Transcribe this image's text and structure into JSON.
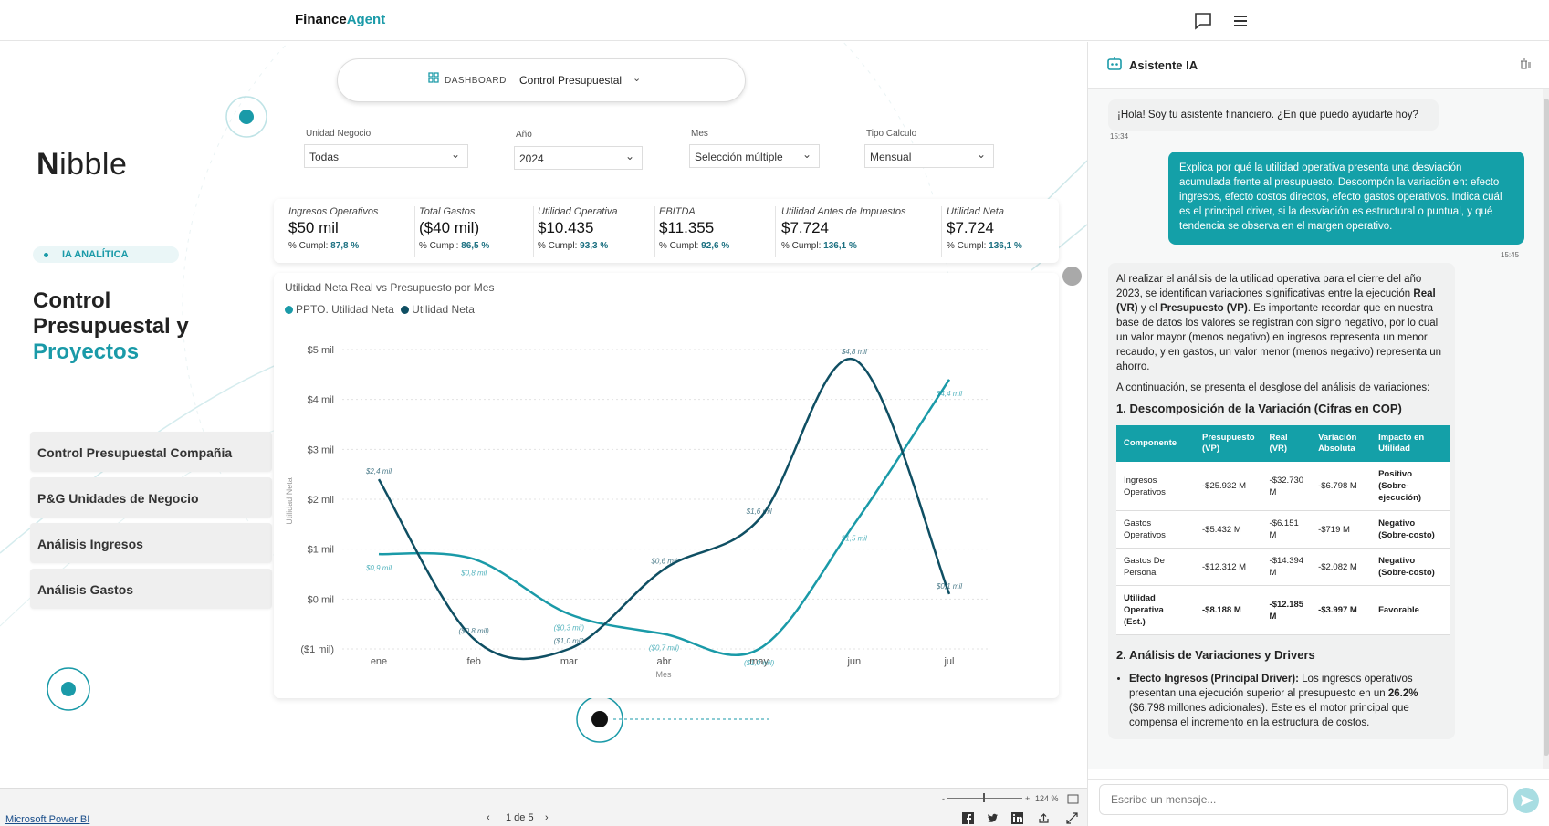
{
  "app": {
    "brand_main": "Finance",
    "brand_accent": "Agent",
    "accent_color": "#1a9aa8",
    "dark_color": "#0f4f63"
  },
  "nav": {
    "dashboard_label": "DASHBOARD",
    "current_page": "Control Presupuestal"
  },
  "sidebar": {
    "logo_text": "ibble",
    "logo_initial": "N",
    "badge": "IA ANALÍTICA",
    "title_line1": "Control",
    "title_line2": "Presupuestal y",
    "title_accent": "Proyectos",
    "items": [
      {
        "label": "Control Presupuestal Compañia"
      },
      {
        "label": "P&G Unidades de Negocio"
      },
      {
        "label": "Análisis Ingresos"
      },
      {
        "label": "Análisis Gastos"
      }
    ]
  },
  "filters": [
    {
      "label": "Unidad Negocio",
      "value": "Todas"
    },
    {
      "label": "Año",
      "value": "2024"
    },
    {
      "label": "Mes",
      "value": "Selección múltiple"
    },
    {
      "label": "Tipo Calculo",
      "value": "Mensual"
    }
  ],
  "kpis": [
    {
      "label": "Ingresos Operativos",
      "value": "$50 mil",
      "pct_label": "% Cumpl:",
      "pct": "87,8 %"
    },
    {
      "label": "Total Gastos",
      "value": "($40 mil)",
      "pct_label": "% Cumpl:",
      "pct": "86,5 %"
    },
    {
      "label": "Utilidad Operativa",
      "value": "$10.435",
      "pct_label": "% Cumpl:",
      "pct": "93,3 %"
    },
    {
      "label": "EBITDA",
      "value": "$11.355",
      "pct_label": "% Cumpl:",
      "pct": "92,6 %"
    },
    {
      "label": "Utilidad Antes de Impuestos",
      "value": "$7.724",
      "pct_label": "% Cumpl:",
      "pct": "136,1 %"
    },
    {
      "label": "Utilidad Neta",
      "value": "$7.724",
      "pct_label": "% Cumpl:",
      "pct": "136,1 %"
    }
  ],
  "chart_data": {
    "type": "line",
    "title": "Utilidad Neta Real vs Presupuesto por Mes",
    "xlabel": "Mes",
    "ylabel": "Utilidad Neta",
    "categories": [
      "ene",
      "feb",
      "mar",
      "abr",
      "may",
      "jun",
      "jul"
    ],
    "ylim": [
      -1,
      5
    ],
    "yticks": [
      "($1 mil)",
      "$0 mil",
      "$1 mil",
      "$2 mil",
      "$3 mil",
      "$4 mil",
      "$5 mil"
    ],
    "grid": true,
    "legend": "top-left",
    "series": [
      {
        "name": "PPTO. Utilidad Neta",
        "color": "#1a9aa8",
        "values": [
          0.9,
          0.8,
          -0.3,
          -0.7,
          -1.0,
          1.5,
          4.4
        ],
        "labels": [
          "$0,9 mil",
          "$0,8 mil",
          "($0,3 mil)",
          "($0,7 mil)",
          "($1,0 mil)",
          "$1,5 mil",
          "$4,4 mil"
        ]
      },
      {
        "name": "Utilidad Neta",
        "color": "#0f4f63",
        "values": [
          2.4,
          -0.8,
          -1.0,
          0.6,
          1.6,
          4.8,
          0.1
        ],
        "labels": [
          "$2,4 mil",
          "($0,8 mil)",
          "($1,0 mil)",
          "$0,6 mil",
          "$1,6 mil",
          "$4,8 mil",
          "$0,1 mil"
        ]
      }
    ]
  },
  "footer": {
    "powerbi": "Microsoft Power BI",
    "pager": "1 de 5",
    "zoom": "124 %"
  },
  "assistant": {
    "title": "Asistente IA",
    "greeting": "¡Hola! Soy tu asistente financiero. ¿En qué puedo ayudarte hoy?",
    "greeting_time": "15:34",
    "user_msg": "Explica por qué la utilidad operativa presenta una desviación acumulada frente al presupuesto. Descompón la variación en: efecto ingresos, efecto costos directos, efecto gastos operativos. Indica cuál es el principal driver, si la desviación es estructural o puntual, y qué tendencia se observa en el margen operativo.",
    "user_time": "15:45",
    "resp_p1_a": "Al realizar el análisis de la utilidad operativa para el cierre del año 2023, se identifican variaciones significativas entre la ejecución ",
    "resp_p1_b": "Real (VR)",
    "resp_p1_c": " y el ",
    "resp_p1_d": "Presupuesto (VP)",
    "resp_p1_e": ". Es importante recordar que en nuestra base de datos los valores se registran con signo negativo, por lo cual un valor mayor (menos negativo) en ingresos representa un menor recaudo, y en gastos, un valor menor (menos negativo) representa un ahorro.",
    "resp_p2": "A continuación, se presenta el desglose del análisis de variaciones:",
    "h1": "1. Descomposición de la Variación (Cifras en COP)",
    "table_headers": [
      "Componente",
      "Presupuesto (VP)",
      "Real (VR)",
      "Variación Absoluta",
      "Impacto en Utilidad"
    ],
    "table_rows": [
      [
        "Ingresos Operativos",
        "-$25.932 M",
        "-$32.730 M",
        "-$6.798 M",
        "Positivo (Sobre-ejecución)"
      ],
      [
        "Gastos Operativos",
        "-$5.432 M",
        "-$6.151 M",
        "-$719 M",
        "Negativo (Sobre-costo)"
      ],
      [
        "Gastos De Personal",
        "-$12.312 M",
        "-$14.394 M",
        "-$2.082 M",
        "Negativo (Sobre-costo)"
      ],
      [
        "Utilidad Operativa (Est.)",
        "-$8.188 M",
        "-$12.185 M",
        "-$3.997 M",
        "Favorable"
      ]
    ],
    "h2": "2. Análisis de Variaciones y Drivers",
    "bullet_bold": "Efecto Ingresos (Principal Driver):",
    "bullet_a": " Los ingresos operativos presentan una ejecución superior al presupuesto en un ",
    "bullet_pct": "26.2%",
    "bullet_b": " ($6.798 millones adicionales). Este es el motor principal que compensa el incremento en la estructura de costos.",
    "input_placeholder": "Escribe un mensaje..."
  }
}
